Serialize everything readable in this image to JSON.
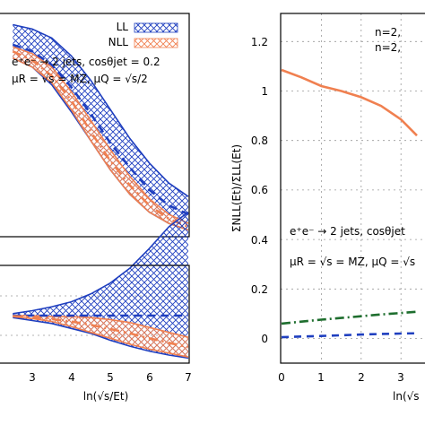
{
  "colors": {
    "ll": "#1f3fbf",
    "nll": "#f08050",
    "green": "#1e6e2e",
    "axis": "#000000",
    "grid": "#9a9a9a"
  },
  "legend": {
    "ll": "LL",
    "nll": "NLL"
  },
  "left_panel": {
    "process": "e⁺e⁻ → 2 jets, cosθjet = 0.2",
    "scales": "μR = √s = MZ, μQ = √s/2",
    "xlabel": "ln(√s/Et)",
    "xticks": [
      "3",
      "4",
      "5",
      "6",
      "7"
    ]
  },
  "right_panel": {
    "ylabel": "ΣNLL(Et)/ΣLL(Et)",
    "xlabel": "ln(√s",
    "yticks": [
      "0",
      "0.2",
      "0.4",
      "0.6",
      "0.8",
      "1",
      "1.2"
    ],
    "xticks": [
      "0",
      "1",
      "2",
      "3"
    ],
    "n_labels": [
      "n=2,",
      "n=2,"
    ],
    "process": "e⁺e⁻ → 2 jets, cosθjet",
    "scales": "μR = √s = MZ, μQ = √s"
  },
  "chart_data": [
    {
      "type": "area",
      "panel": "left-top",
      "x": [
        2.5,
        3,
        3.5,
        4,
        4.5,
        5,
        5.5,
        6,
        6.5,
        7
      ],
      "series": [
        {
          "name": "LL",
          "style": "band",
          "upper": [
            0.95,
            0.93,
            0.89,
            0.81,
            0.7,
            0.57,
            0.44,
            0.33,
            0.24,
            0.18
          ],
          "lower": [
            0.8,
            0.76,
            0.68,
            0.56,
            0.43,
            0.3,
            0.19,
            0.11,
            0.06,
            0.03
          ],
          "central": [
            0.86,
            0.83,
            0.77,
            0.67,
            0.55,
            0.42,
            0.31,
            0.21,
            0.14,
            0.1
          ]
        },
        {
          "name": "NLL",
          "style": "band",
          "upper": [
            0.85,
            0.82,
            0.76,
            0.65,
            0.52,
            0.39,
            0.27,
            0.17,
            0.1,
            0.06
          ],
          "lower": [
            0.8,
            0.76,
            0.69,
            0.57,
            0.43,
            0.3,
            0.19,
            0.11,
            0.06,
            0.03
          ],
          "central": [
            0.83,
            0.79,
            0.72,
            0.61,
            0.47,
            0.34,
            0.23,
            0.14,
            0.08,
            0.045
          ]
        }
      ]
    },
    {
      "type": "area",
      "panel": "left-bottom",
      "x": [
        2.5,
        3,
        3.5,
        4,
        4.5,
        5,
        5.5,
        6,
        6.5,
        7
      ],
      "series": [
        {
          "name": "LL",
          "style": "band",
          "upper": [
            1.02,
            1.05,
            1.09,
            1.14,
            1.22,
            1.33,
            1.48,
            1.68,
            1.9,
            2.05
          ],
          "lower": [
            0.98,
            0.95,
            0.92,
            0.87,
            0.82,
            0.75,
            0.69,
            0.64,
            0.6,
            0.57
          ],
          "central": [
            1.0,
            1.0,
            1.0,
            1.0,
            1.0,
            1.0,
            1.0,
            1.0,
            1.0,
            1.0
          ]
        },
        {
          "name": "NLL",
          "style": "band",
          "upper": [
            1.0,
            1.0,
            0.99,
            0.99,
            0.98,
            0.96,
            0.93,
            0.88,
            0.83,
            0.78
          ],
          "lower": [
            0.99,
            0.97,
            0.94,
            0.89,
            0.83,
            0.77,
            0.71,
            0.66,
            0.62,
            0.58
          ],
          "central": [
            0.995,
            0.985,
            0.965,
            0.94,
            0.905,
            0.865,
            0.82,
            0.77,
            0.725,
            0.68
          ]
        }
      ]
    },
    {
      "type": "line",
      "panel": "right",
      "xlim": [
        0,
        3.4
      ],
      "ylim": [
        -0.1,
        1.3
      ],
      "grid": true,
      "x": [
        0,
        0.5,
        1,
        1.5,
        2,
        2.5,
        3,
        3.4
      ],
      "series": [
        {
          "name": "NLL/LL",
          "style": "solid",
          "values": [
            1.085,
            1.055,
            1.02,
            1.0,
            0.975,
            0.94,
            0.885,
            0.82
          ]
        },
        {
          "name": "dash-dot",
          "style": "dashdot",
          "values": [
            0.06,
            0.068,
            0.076,
            0.083,
            0.09,
            0.097,
            0.103,
            0.108
          ]
        },
        {
          "name": "dashed",
          "style": "dashed",
          "values": [
            0.005,
            0.008,
            0.01,
            0.013,
            0.016,
            0.018,
            0.02,
            0.021
          ]
        }
      ]
    }
  ]
}
